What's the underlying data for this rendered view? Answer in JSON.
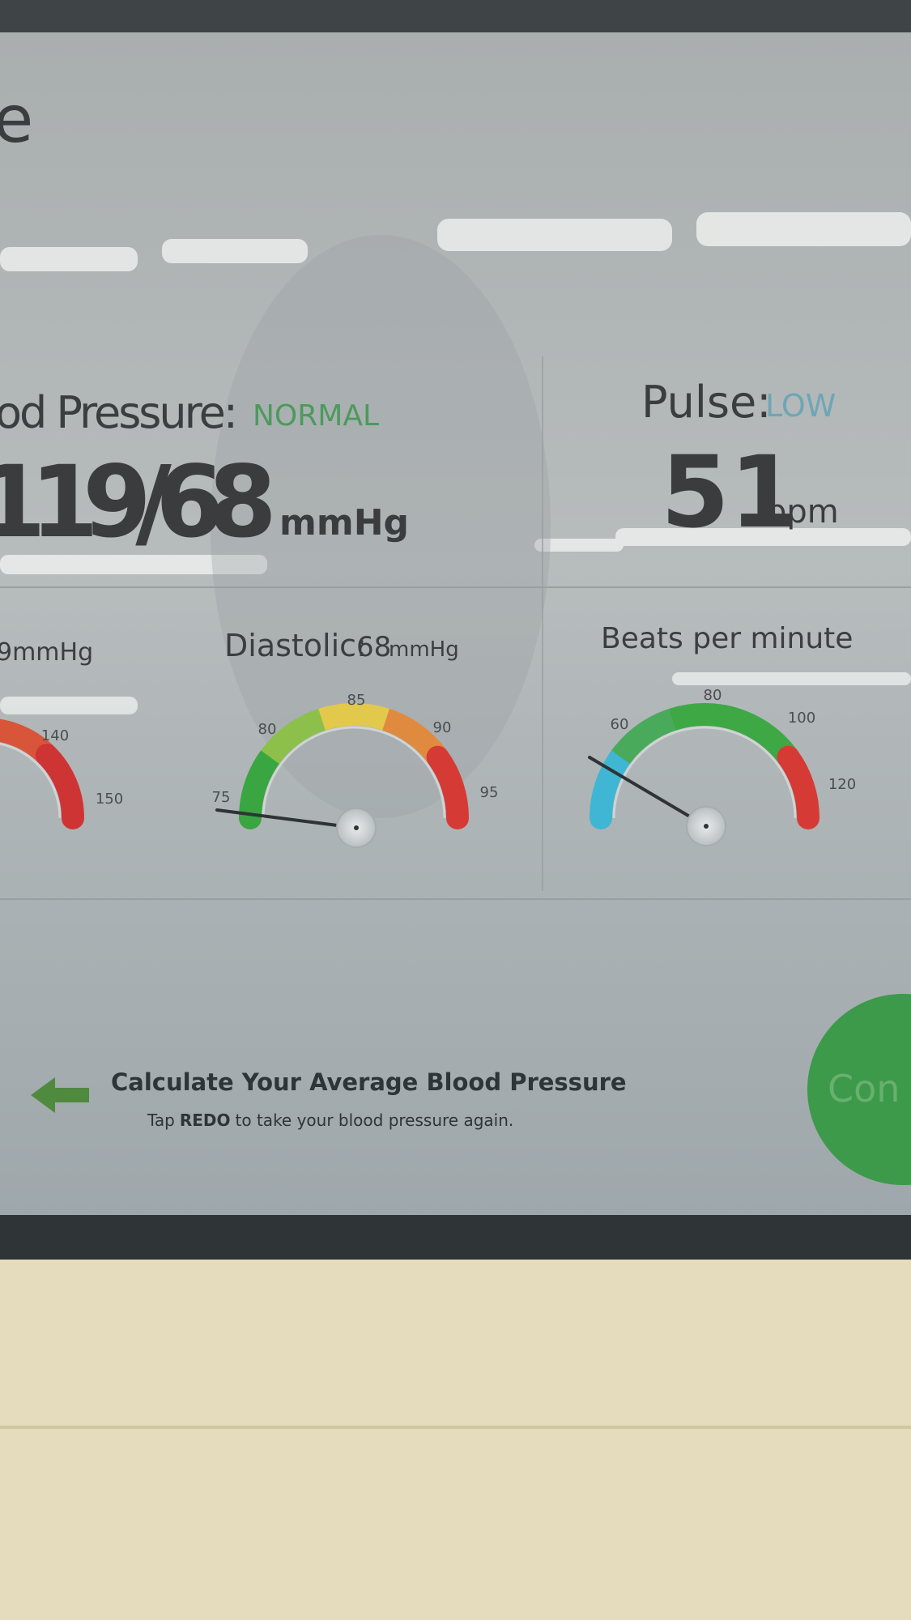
{
  "screen": {
    "title_fragment": "e",
    "blood_pressure": {
      "label": "od Pressure:",
      "status": "NORMAL",
      "reading": "119/68",
      "unit": "mmHg"
    },
    "pulse": {
      "label": "Pulse:",
      "status": "LOW",
      "reading": "51",
      "unit": "bpm"
    },
    "gauges": [
      {
        "caption": "9mmHg",
        "ticks": [
          "140",
          "150"
        ]
      },
      {
        "label": "Diastolic:",
        "value": "68",
        "unit": "mmHg",
        "ticks": [
          "75",
          "80",
          "85",
          "90",
          "95"
        ]
      },
      {
        "caption": "Beats per minute",
        "ticks": [
          "60",
          "80",
          "100",
          "120"
        ]
      }
    ],
    "footer": {
      "heading": "Calculate Your Average Blood Pressure",
      "instruction": [
        "Tap",
        "REDO",
        "to take your blood pressure again."
      ],
      "button": "Con"
    }
  }
}
